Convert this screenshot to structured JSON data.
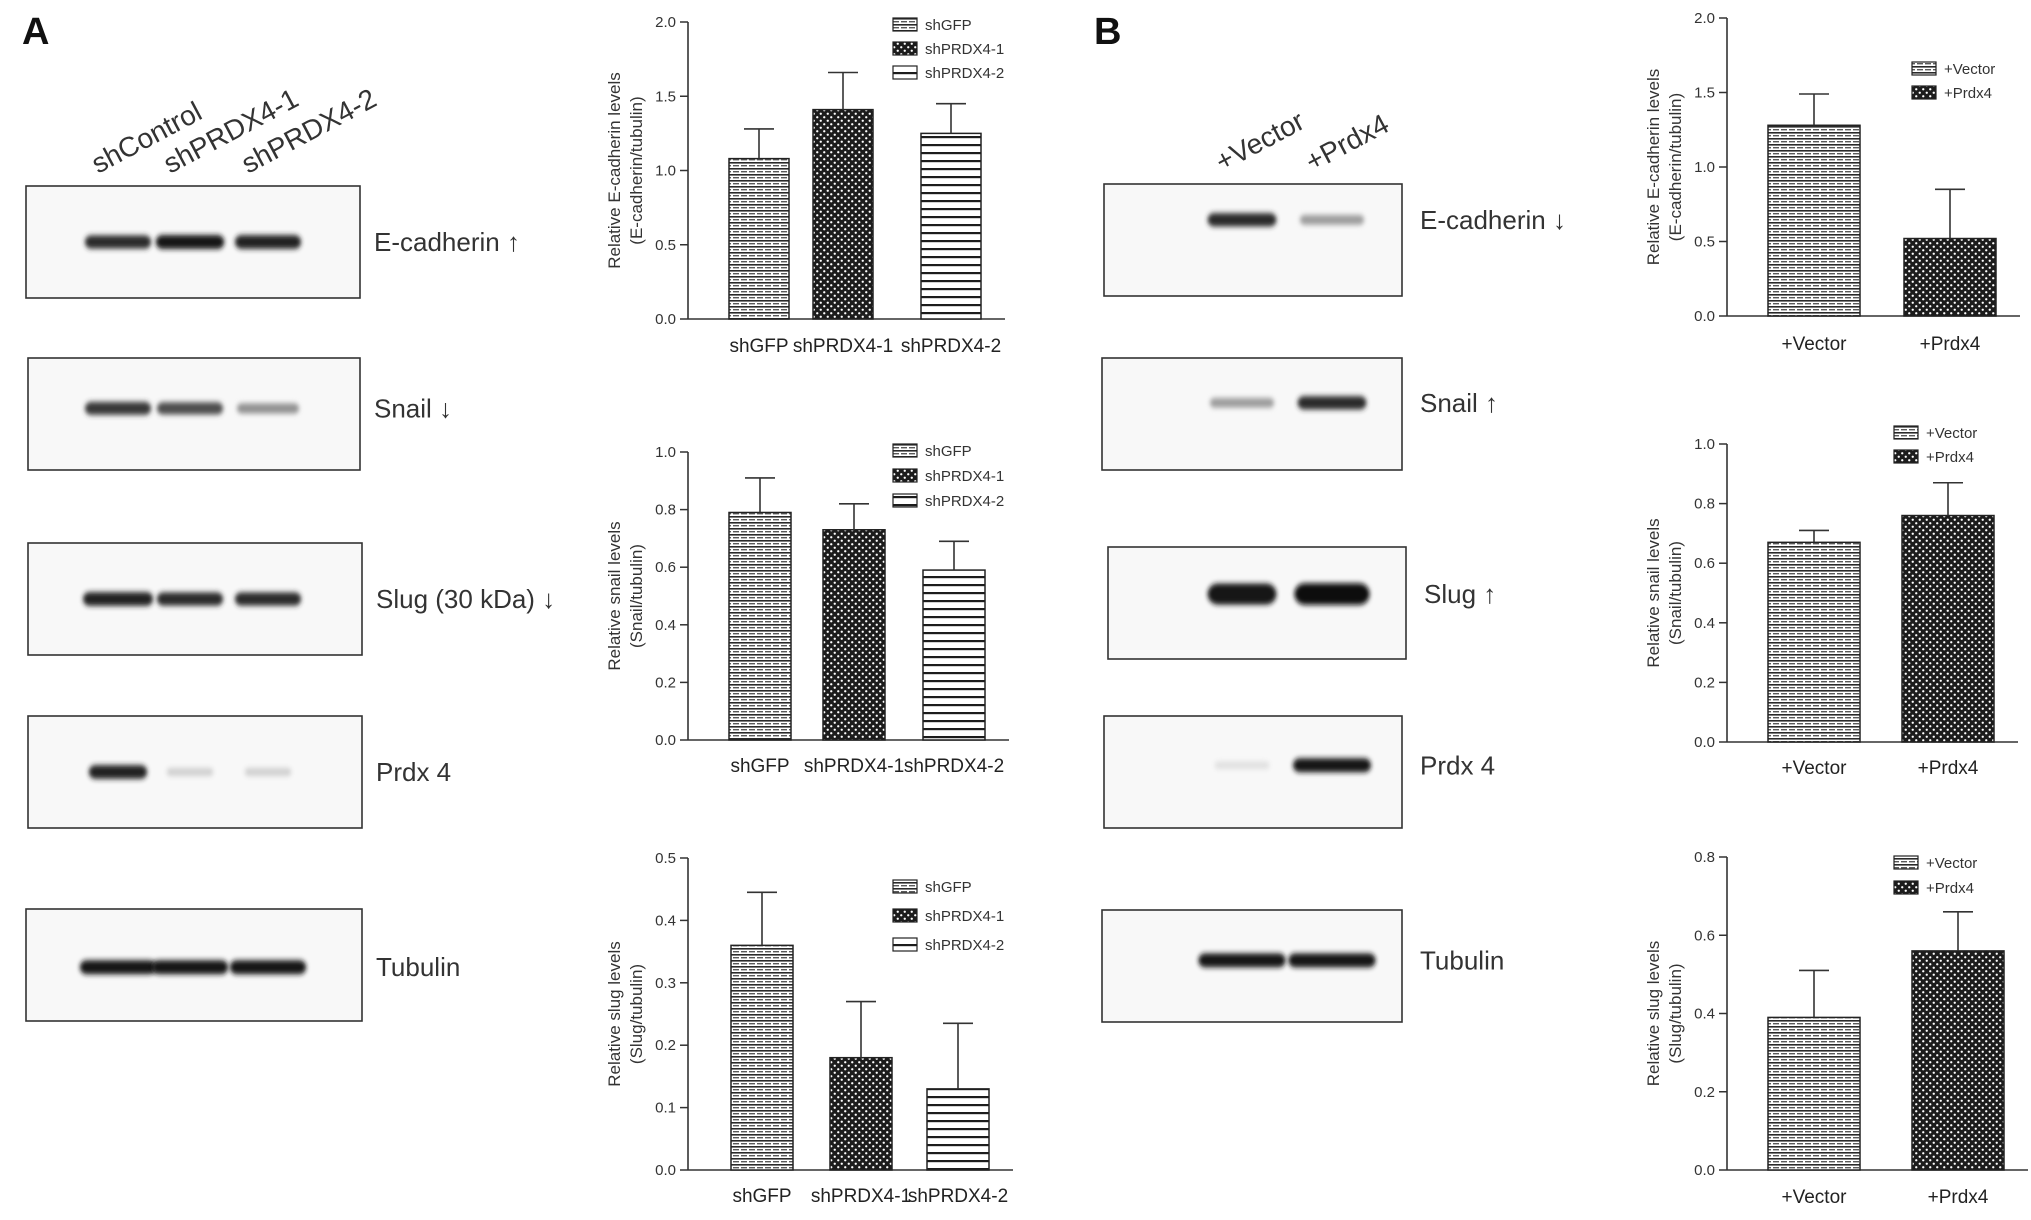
{
  "panels": {
    "a": {
      "letter": "A",
      "lanes": [
        "shControl",
        "shPRDX4-1",
        "shPRDX4-2"
      ],
      "blots": [
        {
          "label": "E-cadherin",
          "arrow": "↑",
          "intensity": [
            0.85,
            0.95,
            0.9
          ],
          "width": [
            0.85,
            0.88,
            0.85
          ]
        },
        {
          "label": "Snail",
          "arrow": "↓",
          "intensity": [
            0.8,
            0.7,
            0.4
          ],
          "width": [
            0.85,
            0.85,
            0.8
          ]
        },
        {
          "label": "Slug (30 kDa)",
          "arrow": "↓",
          "intensity": [
            0.9,
            0.85,
            0.85
          ],
          "width": [
            0.9,
            0.85,
            0.85
          ]
        },
        {
          "label": "Prdx 4",
          "arrow": "",
          "intensity": [
            0.9,
            0.12,
            0.12
          ],
          "width": [
            0.75,
            0.6,
            0.6
          ]
        },
        {
          "label": "Tubulin",
          "arrow": "",
          "intensity": [
            0.95,
            0.95,
            0.95
          ],
          "width": [
            0.98,
            0.98,
            0.98
          ]
        }
      ]
    },
    "b": {
      "letter": "B",
      "lanes": [
        "+Vector",
        "+Prdx4"
      ],
      "blots": [
        {
          "label": "E-cadherin",
          "arrow": "↓",
          "intensity": [
            0.85,
            0.35
          ],
          "width": [
            0.75,
            0.7
          ]
        },
        {
          "label": "Snail",
          "arrow": "↑",
          "intensity": [
            0.35,
            0.85
          ],
          "width": [
            0.7,
            0.75
          ]
        },
        {
          "label": "Slug",
          "arrow": "↑",
          "intensity": [
            0.95,
            1.0
          ],
          "width": [
            0.75,
            0.82
          ]
        },
        {
          "label": "Prdx 4",
          "arrow": "",
          "intensity": [
            0.05,
            0.95
          ],
          "width": [
            0.6,
            0.85
          ]
        },
        {
          "label": "Tubulin",
          "arrow": "",
          "intensity": [
            0.95,
            0.95
          ],
          "width": [
            0.95,
            0.95
          ]
        }
      ]
    }
  },
  "patterns": {
    "shGFP": "hatch",
    "shPRDX4-1": "dots",
    "shPRDX4-2": "stripes",
    "+Vector": "hatch",
    "+Prdx4": "dots"
  },
  "chart_data": [
    {
      "type": "bar",
      "ylabel": [
        "Relative E-cadherin levels",
        "(E-cadherin/tubulin)"
      ],
      "categories": [
        "shGFP",
        "shPRDX4-1",
        "shPRDX4-2"
      ],
      "values": [
        1.08,
        1.41,
        1.25
      ],
      "errors": [
        0.2,
        0.25,
        0.2
      ],
      "ylim": [
        0,
        2.0
      ],
      "yticks": [
        "0.0",
        "0.5",
        "1.0",
        "1.5",
        "2.0"
      ],
      "legend": [
        "shGFP",
        "shPRDX4-1",
        "shPRDX4-2"
      ]
    },
    {
      "type": "bar",
      "ylabel": [
        "Relative snail levels",
        "(Snail/tubulin)"
      ],
      "categories": [
        "shGFP",
        "shPRDX4-1",
        "shPRDX4-2"
      ],
      "values": [
        0.79,
        0.73,
        0.59
      ],
      "errors": [
        0.12,
        0.09,
        0.1
      ],
      "ylim": [
        0,
        1.0
      ],
      "yticks": [
        "0.0",
        "0.2",
        "0.4",
        "0.6",
        "0.8",
        "1.0"
      ],
      "legend": [
        "shGFP",
        "shPRDX4-1",
        "shPRDX4-2"
      ]
    },
    {
      "type": "bar",
      "ylabel": [
        "Relative slug levels",
        "(Slug/tubulin)"
      ],
      "categories": [
        "shGFP",
        "shPRDX4-1",
        "shPRDX4-2"
      ],
      "values": [
        0.36,
        0.18,
        0.13
      ],
      "errors": [
        0.085,
        0.09,
        0.105
      ],
      "ylim": [
        0,
        0.5
      ],
      "yticks": [
        "0.0",
        "0.1",
        "0.2",
        "0.3",
        "0.4",
        "0.5"
      ],
      "legend": [
        "shGFP",
        "shPRDX4-1",
        "shPRDX4-2"
      ]
    },
    {
      "type": "bar",
      "ylabel": [
        "Relative E-cadherin levels",
        "(E-cadherin/tubulin)"
      ],
      "categories": [
        "+Vector",
        "+Prdx4"
      ],
      "values": [
        1.28,
        0.52
      ],
      "errors": [
        0.21,
        0.33
      ],
      "ylim": [
        0,
        2.0
      ],
      "yticks": [
        "0.0",
        "0.5",
        "1.0",
        "1.5",
        "2.0"
      ],
      "legend": [
        "+Vector",
        "+Prdx4"
      ]
    },
    {
      "type": "bar",
      "ylabel": [
        "Relative snail levels",
        "(Snail/tubulin)"
      ],
      "categories": [
        "+Vector",
        "+Prdx4"
      ],
      "values": [
        0.67,
        0.76
      ],
      "errors": [
        0.04,
        0.11
      ],
      "ylim": [
        0,
        1.0
      ],
      "yticks": [
        "0.0",
        "0.2",
        "0.4",
        "0.6",
        "0.8",
        "1.0"
      ],
      "legend": [
        "+Vector",
        "+Prdx4"
      ]
    },
    {
      "type": "bar",
      "ylabel": [
        "Relative slug levels",
        "(Slug/tubulin)"
      ],
      "categories": [
        "+Vector",
        "+Prdx4"
      ],
      "values": [
        0.39,
        0.56
      ],
      "errors": [
        0.12,
        0.1
      ],
      "ylim": [
        0,
        0.8
      ],
      "yticks": [
        "0.0",
        "0.2",
        "0.4",
        "0.6",
        "0.8"
      ],
      "legend": [
        "+Vector",
        "+Prdx4"
      ]
    }
  ]
}
